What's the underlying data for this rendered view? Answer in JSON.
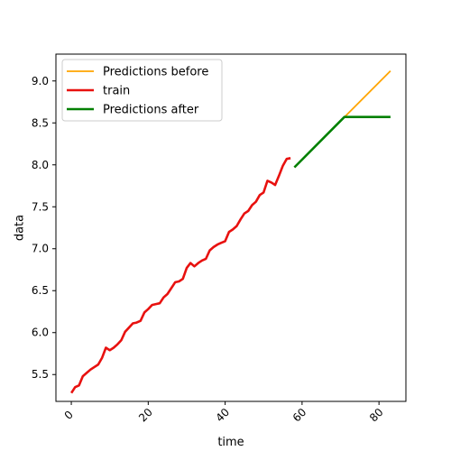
{
  "chart_data": {
    "type": "line",
    "xlabel": "time",
    "ylabel": "data",
    "xlim": [
      -4,
      87
    ],
    "ylim": [
      5.18,
      9.32
    ],
    "x_ticks": [
      0,
      20,
      40,
      60,
      80
    ],
    "x_tick_labels": [
      "0",
      "20",
      "40",
      "60",
      "80"
    ],
    "y_ticks": [
      5.5,
      6.0,
      6.5,
      7.0,
      7.5,
      8.0,
      8.5,
      9.0
    ],
    "y_tick_labels": [
      "5.5",
      "6.0",
      "6.5",
      "7.0",
      "7.5",
      "8.0",
      "8.5",
      "9.0"
    ],
    "grid": false,
    "legend_position": "top-left",
    "series": [
      {
        "name": "Predictions before",
        "color": "#ffa500",
        "x": [
          58,
          83
        ],
        "y": [
          7.97,
          9.12
        ]
      },
      {
        "name": "train",
        "color": "#e8110f",
        "x": [
          0,
          1,
          2,
          3,
          4,
          5,
          6,
          7,
          8,
          9,
          10,
          11,
          12,
          13,
          14,
          15,
          16,
          17,
          18,
          19,
          20,
          21,
          22,
          23,
          24,
          25,
          26,
          27,
          28,
          29,
          30,
          31,
          32,
          33,
          34,
          35,
          36,
          37,
          38,
          39,
          40,
          41,
          42,
          43,
          44,
          45,
          46,
          47,
          48,
          49,
          50,
          51,
          52,
          53,
          54,
          55,
          56,
          57
        ],
        "y": [
          5.28,
          5.35,
          5.37,
          5.48,
          5.52,
          5.56,
          5.59,
          5.62,
          5.7,
          5.82,
          5.79,
          5.82,
          5.86,
          5.91,
          6.01,
          6.06,
          6.11,
          6.12,
          6.14,
          6.24,
          6.28,
          6.33,
          6.34,
          6.35,
          6.42,
          6.46,
          6.53,
          6.6,
          6.61,
          6.64,
          6.77,
          6.83,
          6.79,
          6.83,
          6.86,
          6.88,
          6.98,
          7.02,
          7.05,
          7.07,
          7.09,
          7.2,
          7.23,
          7.27,
          7.35,
          7.42,
          7.45,
          7.52,
          7.56,
          7.64,
          7.67,
          7.81,
          7.79,
          7.76,
          7.87,
          7.99,
          8.07,
          8.08
        ]
      },
      {
        "name": "Predictions after",
        "color": "#008000",
        "x": [
          58,
          71,
          83
        ],
        "y": [
          7.97,
          8.57,
          8.57
        ]
      }
    ]
  }
}
